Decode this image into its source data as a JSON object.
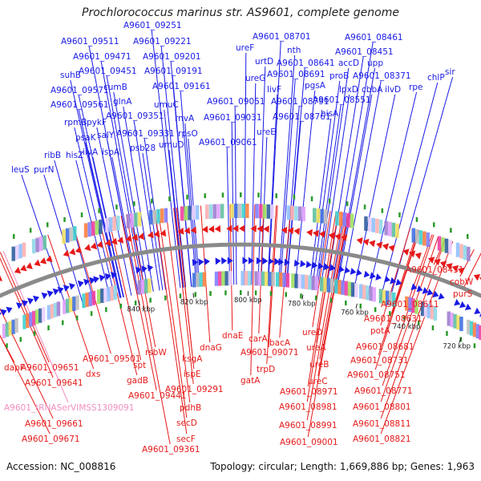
{
  "title": "Prochlorococcus marinus str. AS9601, complete genome",
  "footer": {
    "accession": "Accession: NC_008816",
    "stats": "Topology: circular; Length: 1,669,886 bp; Genes: 1,963"
  },
  "scale_ticks": [
    "720 kbp",
    "740 kbp",
    "760 kbp",
    "780 kbp",
    "800 kbp",
    "820 kbp",
    "840 kbp"
  ],
  "colors": {
    "forward_strand": "#1a1ae6",
    "reverse_strand": "#e61a1a",
    "trna": "#f08fc0",
    "backbone": "#8a8a8a",
    "tick_green": "#2a9a2a"
  },
  "labels_forward": [
    "leuS",
    "purN",
    "ribB",
    "hisZ",
    "suhB",
    "A9601_09571",
    "A9601_09561",
    "rpmB",
    "psaK",
    "pykF",
    "salY",
    "ilvA",
    "ispA",
    "A9601_09511",
    "A9601_09471",
    "A9601_09451",
    "cumB",
    "glnA",
    "A9601_09351",
    "A9601_09331",
    "psb28",
    "A9601_09251",
    "A9601_09221",
    "A9601_09201",
    "A9601_09191",
    "A9601_09161",
    "umuC",
    "umuD",
    "rpsO",
    "rnvA",
    "A9601_09051",
    "A9601_09031",
    "A9601_09061",
    "ureE",
    "ureF",
    "ureG",
    "urtD",
    "A9601_08701",
    "nth",
    "A9601_08641",
    "A9601_08691",
    "livF",
    "pgsA",
    "A9601_08791",
    "A9601_08761",
    "hisA",
    "A9601_08551",
    "A9601_08461",
    "A9601_08451",
    "accD",
    "upp",
    "proB",
    "A9601_08371",
    "lpxD",
    "cbbA",
    "ilvD",
    "rpe",
    "chlP",
    "sir"
  ],
  "labels_reverse": [
    "dapF",
    "A9601_09651",
    "A9601_09641",
    "A9601_tRNASerVIMSS1309091",
    "A9601_09661",
    "A9601_09671",
    "dxs",
    "A9601_09501",
    "spt",
    "gadB",
    "A9601_09441",
    "rsbW",
    "ksgA",
    "ispE",
    "A9601_09291",
    "pdhB",
    "secD",
    "secF",
    "A9601_09361",
    "dnaG",
    "dnaE",
    "gatA",
    "carA",
    "A9601_09071",
    "trpD",
    "bacA",
    "ureD",
    "ureA",
    "ureB",
    "ureC",
    "A9601_08971",
    "A9601_08981",
    "A9601_08991",
    "A9601_09001",
    "potA",
    "A9601_08631",
    "A9601_08611",
    "A9601_08681",
    "A9601_08731",
    "A9601_08751",
    "A9601_08771",
    "A9601_08801",
    "A9601_08811",
    "A9601_08821",
    "A9601_08431",
    "cobW",
    "purS"
  ]
}
